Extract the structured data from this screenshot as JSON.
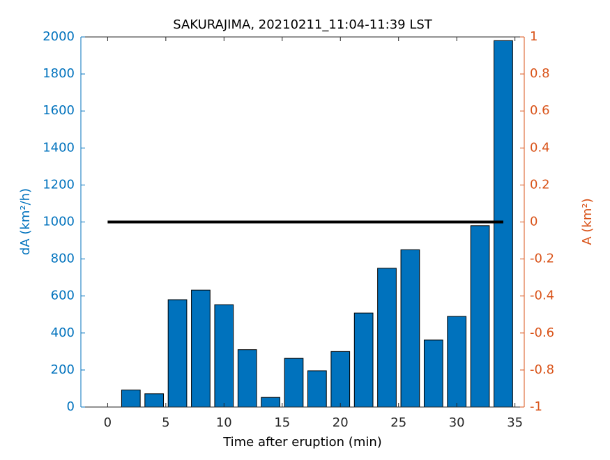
{
  "chart_data": {
    "type": "bar",
    "title": "SAKURAJIMA, 20210211_11:04-11:39 LST",
    "xlabel": "Time after eruption (min)",
    "ylabel": "dA (km²/h)",
    "y2label": "A (km²)",
    "xlim": [
      -2.3,
      35.8
    ],
    "xticks": [
      0,
      5,
      10,
      15,
      20,
      25,
      30,
      35
    ],
    "ylim": [
      0,
      2000
    ],
    "yticks": [
      0,
      200,
      400,
      600,
      800,
      1000,
      1200,
      1400,
      1600,
      1800,
      2000
    ],
    "y2lim": [
      -1,
      1
    ],
    "y2ticks": [
      -1,
      -0.8,
      -0.6,
      -0.4,
      -0.2,
      0,
      0.2,
      0.4,
      0.6,
      0.8,
      1
    ],
    "ycolor": "#0072BD",
    "y2color": "#D95319",
    "series": [
      {
        "type": "bar",
        "color": "#0072BD",
        "x": [
          0,
          2,
          4,
          6,
          8,
          10,
          12,
          14,
          16,
          18,
          20,
          22,
          24,
          26,
          28,
          30,
          32,
          34
        ],
        "values": [
          0,
          92,
          72,
          580,
          632,
          553,
          310,
          52,
          263,
          196,
          300,
          508,
          750,
          850,
          362,
          490,
          980,
          1980
        ]
      },
      {
        "type": "line",
        "axis": "y2",
        "color": "#000000",
        "x": [
          0,
          34
        ],
        "values": [
          0,
          0
        ]
      }
    ]
  }
}
